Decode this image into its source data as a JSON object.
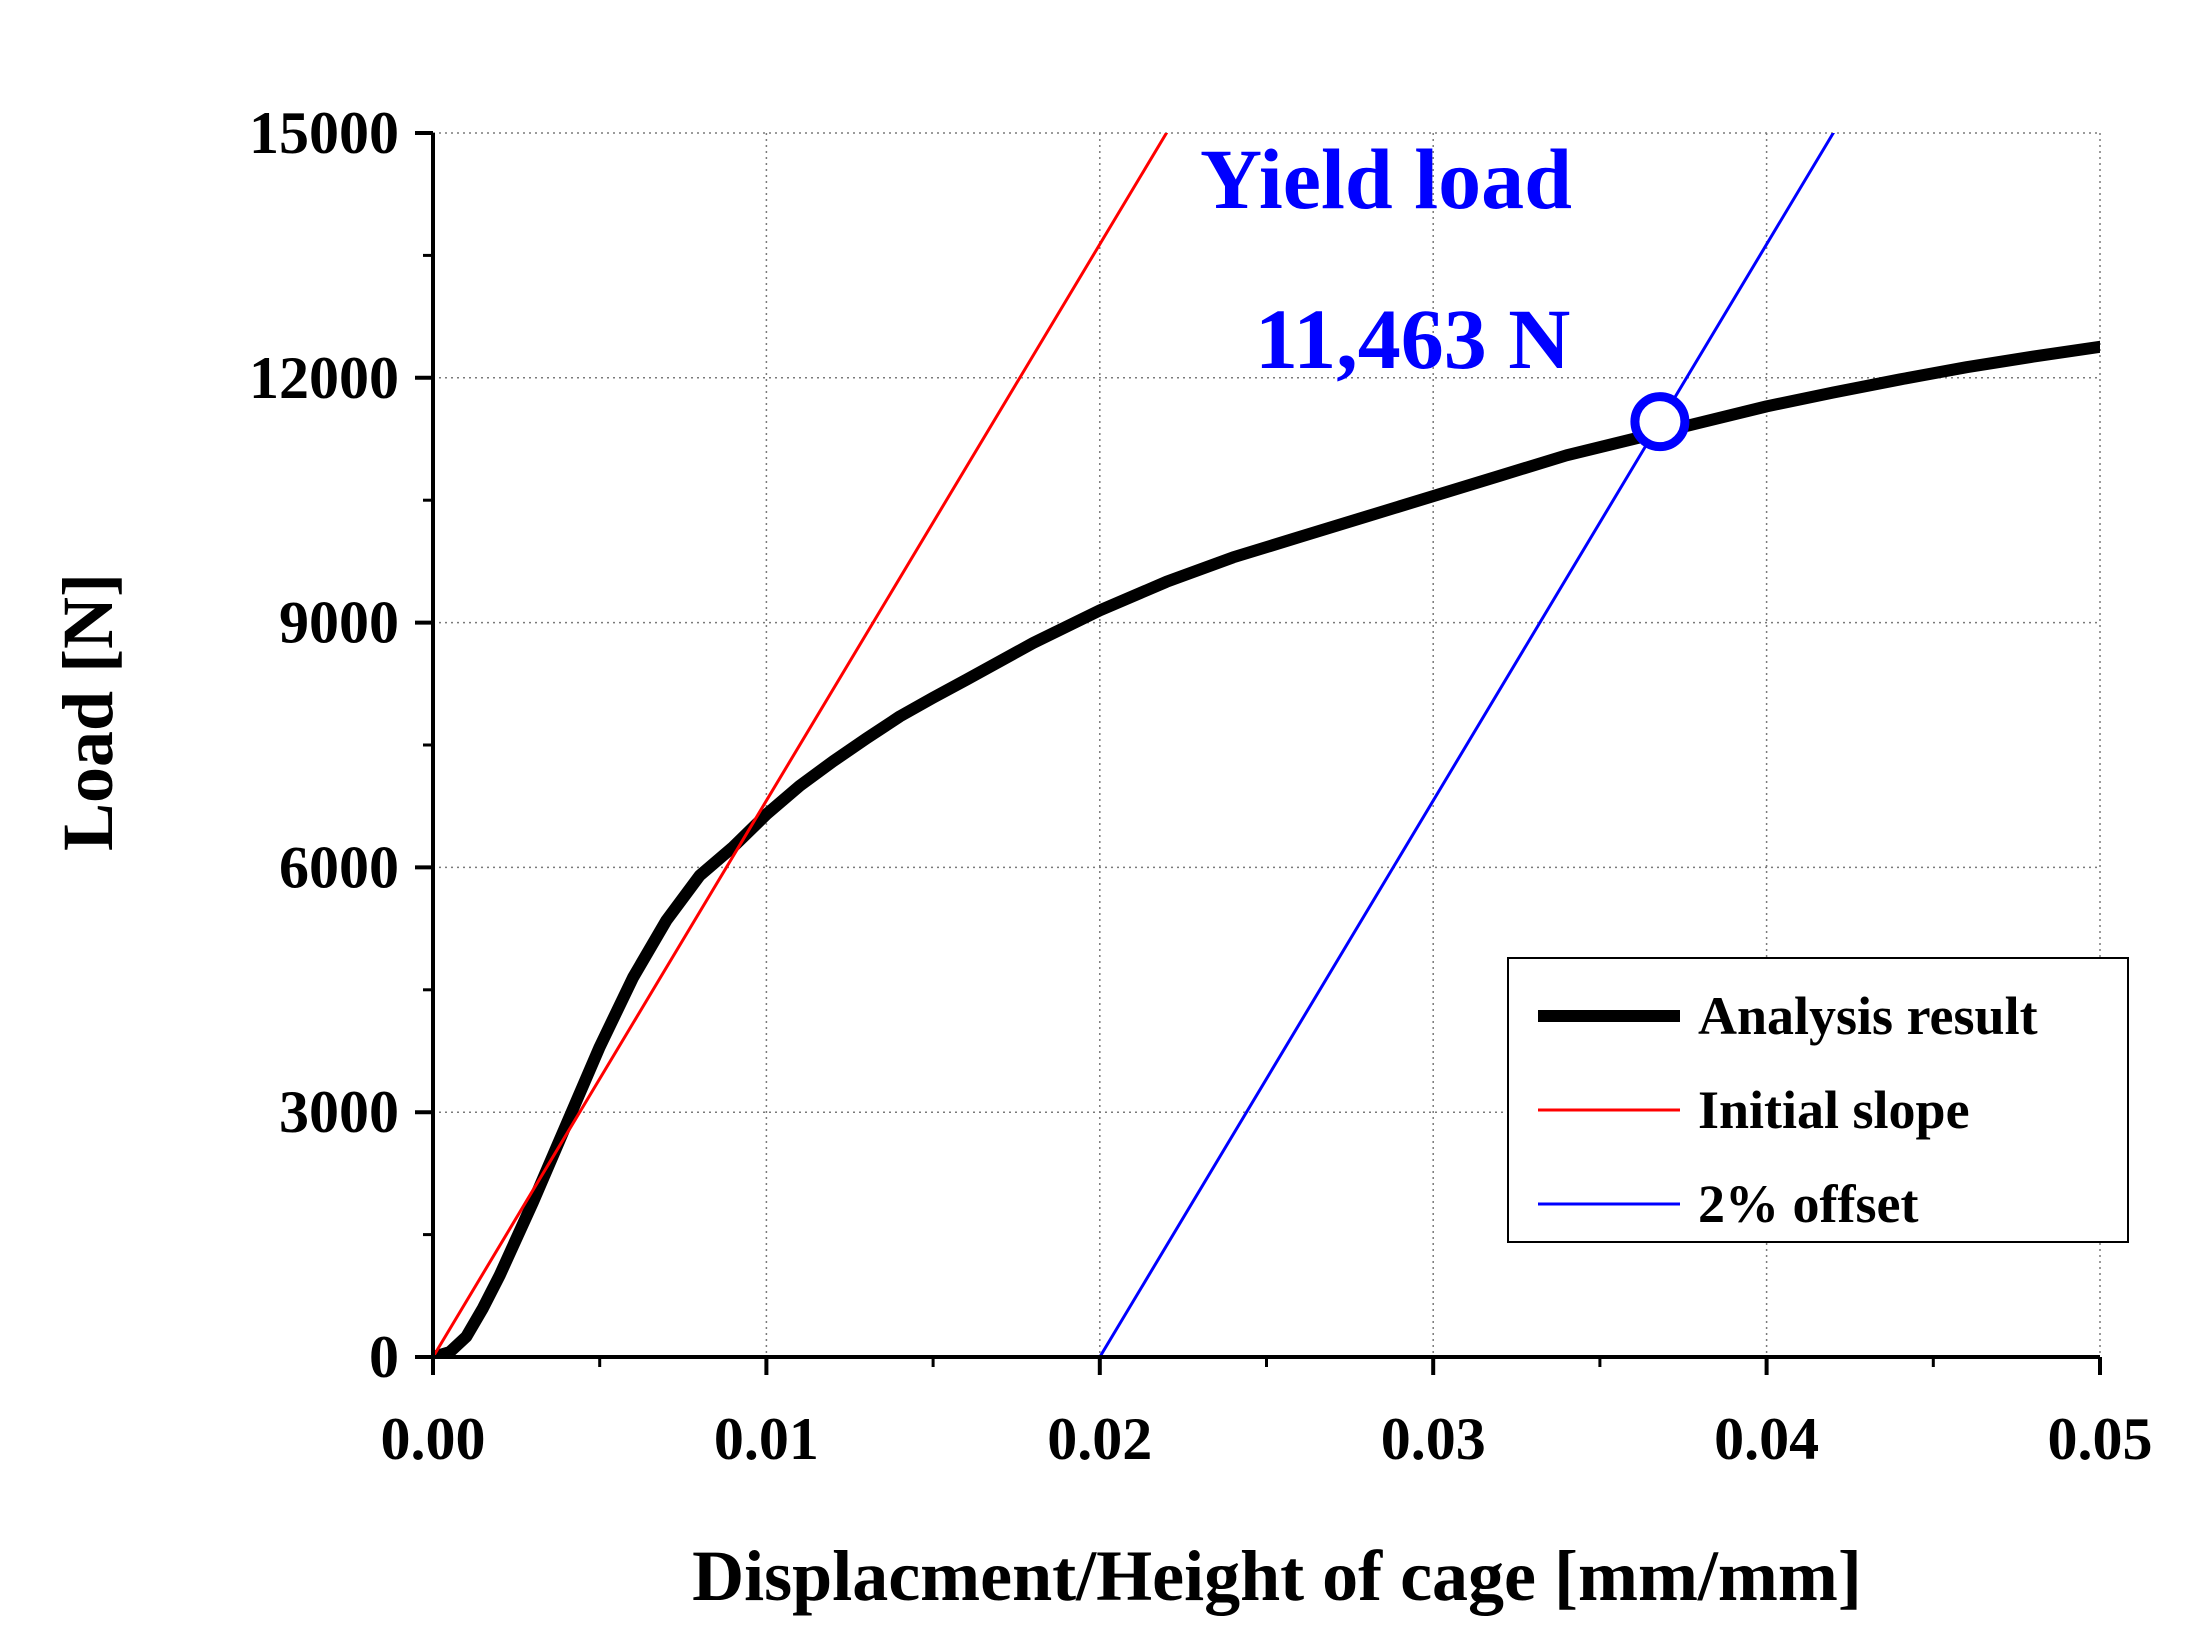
{
  "chart_data": {
    "type": "line",
    "title": "",
    "xlabel": "Displacment/Height of cage [mm/mm]",
    "ylabel": "Load [N]",
    "xlim": [
      0,
      0.05
    ],
    "ylim": [
      0,
      15000
    ],
    "x_ticks": [
      "0.00",
      "0.01",
      "0.02",
      "0.03",
      "0.04",
      "0.05"
    ],
    "y_ticks": [
      "0",
      "3000",
      "6000",
      "9000",
      "12000",
      "15000"
    ],
    "grid": true,
    "legend_position": "bottom-right",
    "series": [
      {
        "name": "Analysis result",
        "color": "#000000",
        "style": "thick",
        "x": [
          0.0,
          0.0005,
          0.001,
          0.0015,
          0.002,
          0.003,
          0.004,
          0.005,
          0.006,
          0.007,
          0.008,
          0.009,
          0.01,
          0.011,
          0.012,
          0.013,
          0.014,
          0.015,
          0.016,
          0.018,
          0.02,
          0.022,
          0.024,
          0.026,
          0.028,
          0.03,
          0.032,
          0.034,
          0.036,
          0.038,
          0.04,
          0.042,
          0.044,
          0.046,
          0.048,
          0.05
        ],
        "y": [
          0,
          60,
          250,
          600,
          1000,
          1900,
          2850,
          3800,
          4650,
          5350,
          5900,
          6250,
          6650,
          7000,
          7300,
          7580,
          7850,
          8080,
          8300,
          8750,
          9150,
          9500,
          9800,
          10050,
          10300,
          10550,
          10800,
          11050,
          11250,
          11450,
          11650,
          11820,
          11980,
          12130,
          12260,
          12380
        ]
      },
      {
        "name": "Initial slope",
        "color": "#ff0000",
        "style": "thin",
        "x": [
          0.0,
          0.022
        ],
        "y": [
          0,
          15000
        ]
      },
      {
        "name": "2% offset",
        "color": "#0000ff",
        "style": "thin",
        "x": [
          0.02,
          0.042
        ],
        "y": [
          0,
          15000
        ]
      }
    ],
    "yield_point": {
      "x": 0.0368,
      "y": 11463
    },
    "annotations": [
      "Yield  load",
      "11,463  N"
    ]
  }
}
